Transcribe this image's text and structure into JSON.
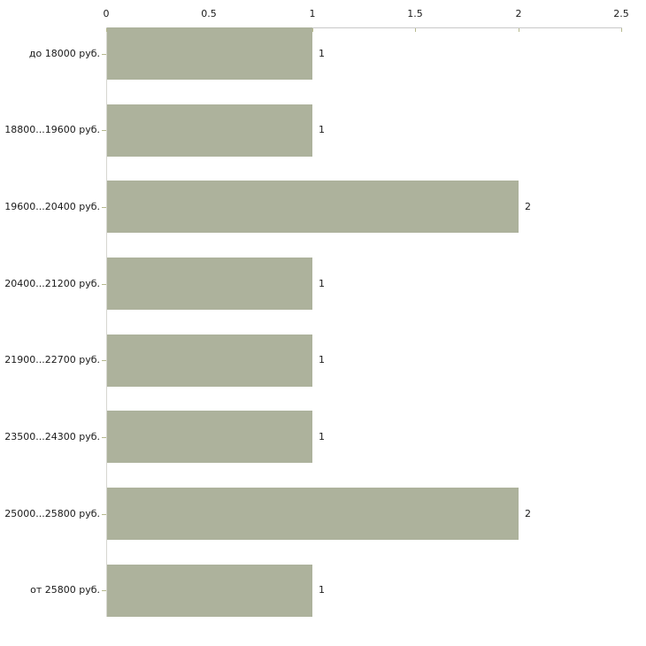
{
  "chart_data": {
    "type": "bar",
    "orientation": "horizontal",
    "title": "",
    "xlabel": "",
    "ylabel": "",
    "categories": [
      "до 18000 руб.",
      "18800...19600 руб.",
      "19600...20400 руб.",
      "20400...21200 руб.",
      "21900...22700 руб.",
      "23500...24300 руб.",
      "25000...25800 руб.",
      "от 25800 руб."
    ],
    "values": [
      1,
      1,
      2,
      1,
      1,
      1,
      2,
      1
    ],
    "value_labels": [
      "1",
      "1",
      "2",
      "1",
      "1",
      "1",
      "2",
      "1"
    ],
    "x_ticks": [
      0,
      0.5,
      1,
      1.5,
      2,
      2.5
    ],
    "x_tick_labels": [
      "0",
      "0.5",
      "1",
      "1.5",
      "2",
      "2.5"
    ],
    "xlim": [
      0,
      2.5
    ],
    "axis_position": "top",
    "grid": false,
    "legend": false,
    "colors": {
      "bar_fill": "#adb29c",
      "axis_line": "#c8c8c8",
      "tick_mark": "#b6b98e",
      "y_axis_line": "#d6d6d0",
      "text": "#1a1a1a",
      "background": "#ffffff"
    }
  }
}
